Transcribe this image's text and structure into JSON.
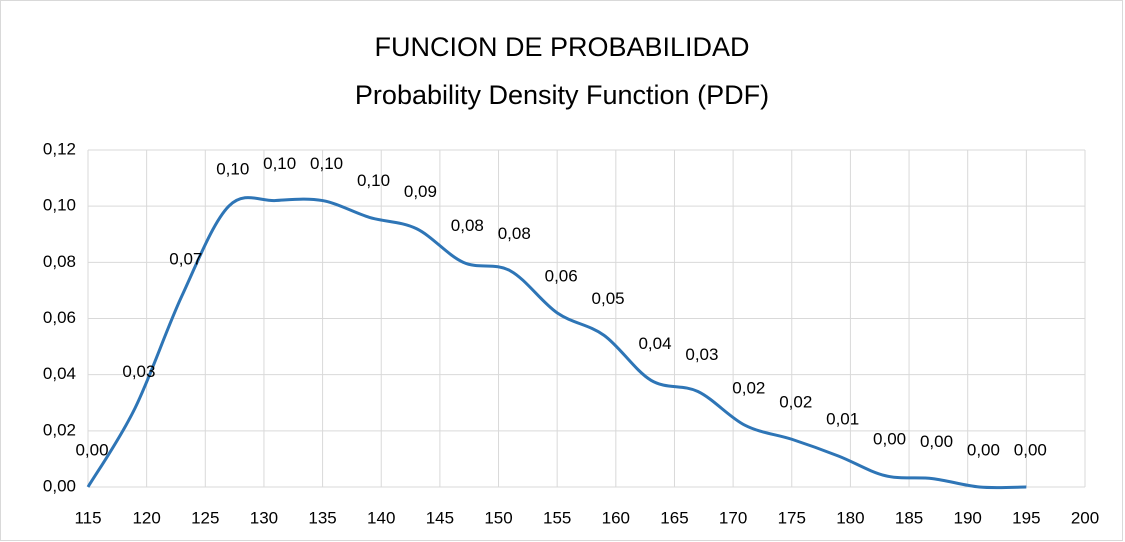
{
  "chart_data": {
    "type": "line",
    "title": [
      "FUNCION DE PROBABILIDAD",
      "Probability Density Function (PDF)"
    ],
    "x": [
      115,
      119,
      123,
      127,
      131,
      135,
      139,
      143,
      147,
      151,
      155,
      159,
      163,
      167,
      171,
      175,
      179,
      183,
      187,
      191,
      195
    ],
    "series": [
      {
        "color": "#2e75b6",
        "values": [
          0.0,
          0.028,
          0.068,
          0.1,
          0.102,
          0.102,
          0.096,
          0.092,
          0.08,
          0.077,
          0.062,
          0.054,
          0.038,
          0.034,
          0.022,
          0.017,
          0.011,
          0.004,
          0.003,
          0.0,
          0.0
        ],
        "value_labels": [
          "0,00",
          "0,03",
          "0,07",
          "0,10",
          "0,10",
          "0,10",
          "0,10",
          "0,09",
          "0,08",
          "0,08",
          "0,06",
          "0,05",
          "0,04",
          "0,03",
          "0,02",
          "0,02",
          "0,01",
          "0,00",
          "0,00",
          "0,00",
          "0,00"
        ]
      }
    ],
    "xlim": [
      115,
      200
    ],
    "xticks": [
      115,
      120,
      125,
      130,
      135,
      140,
      145,
      150,
      155,
      160,
      165,
      170,
      175,
      180,
      185,
      190,
      195,
      200
    ],
    "ylim": [
      0,
      0.12
    ],
    "yticks": [
      {
        "value": 0,
        "label": "0,00"
      },
      {
        "value": 0.02,
        "label": "0,02"
      },
      {
        "value": 0.04,
        "label": "0,04"
      },
      {
        "value": 0.06,
        "label": "0,06"
      },
      {
        "value": 0.08,
        "label": "0,08"
      },
      {
        "value": 0.1,
        "label": "0,10"
      },
      {
        "value": 0.12,
        "label": "0,12"
      }
    ],
    "grid": true
  }
}
